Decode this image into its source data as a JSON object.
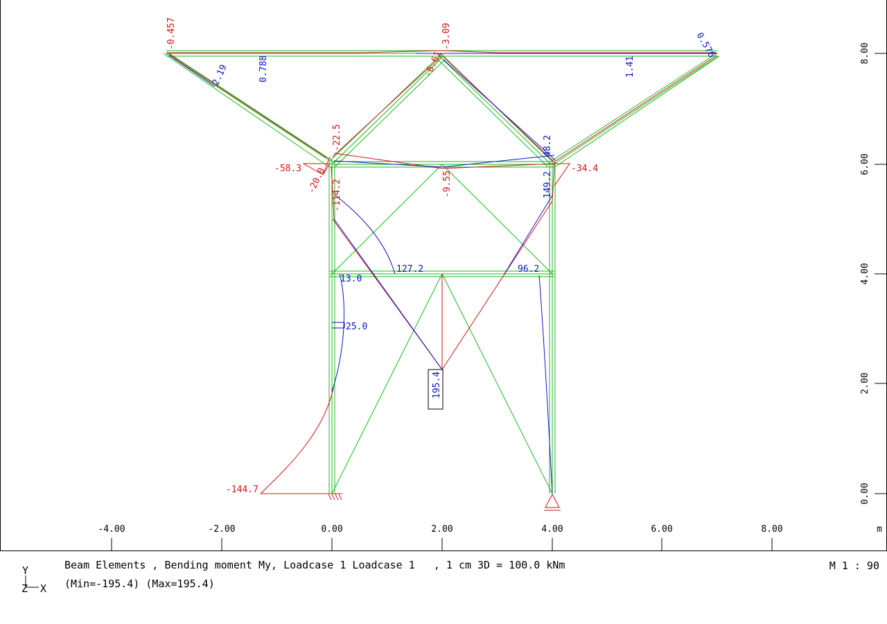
{
  "colors": {
    "structure": "#18b818",
    "positive": "#0a14c8",
    "negative": "#d21414",
    "axis": "#000000"
  },
  "axes": {
    "x_ticks": [
      "-4.00",
      "-2.00",
      "0.00",
      "2.00",
      "4.00",
      "6.00",
      "8.00"
    ],
    "x_unit": "m",
    "y_ticks": [
      "0.00",
      "2.00",
      "4.00",
      "6.00",
      "8.00"
    ]
  },
  "labels": [
    {
      "text": "-0.457",
      "color": "negative"
    },
    {
      "text": "-3.09",
      "color": "negative"
    },
    {
      "text": "0.576",
      "color": "positive"
    },
    {
      "text": "2.19",
      "color": "positive"
    },
    {
      "text": "0.788",
      "color": "positive"
    },
    {
      "text": "1.41",
      "color": "positive"
    },
    {
      "text": "-6.61",
      "color": "negative"
    },
    {
      "text": "-22.5",
      "color": "negative"
    },
    {
      "text": "48.2",
      "color": "positive"
    },
    {
      "text": "-58.3",
      "color": "negative"
    },
    {
      "text": "-20.0",
      "color": "negative"
    },
    {
      "text": "-114.2",
      "color": "negative"
    },
    {
      "text": "-9.55",
      "color": "negative"
    },
    {
      "text": "149.2",
      "color": "positive"
    },
    {
      "text": "-34.4",
      "color": "negative"
    },
    {
      "text": "127.2",
      "color": "positive"
    },
    {
      "text": "96.2",
      "color": "positive"
    },
    {
      "text": "13.0",
      "color": "positive"
    },
    {
      "text": "25.0",
      "color": "positive"
    },
    {
      "text": "195.4",
      "color": "positive"
    },
    {
      "text": "-144.7",
      "color": "negative"
    }
  ],
  "footer": {
    "title": "Beam Elements , Bending moment My, Loadcase 1 Loadcase 1   , 1 cm 3D = 100.0 kNm",
    "minmax": "(Min=-195.4) (Max=195.4)",
    "scale": "M 1 : 90",
    "axis_y": "Y",
    "axis_x": "X",
    "axis_z": "Z"
  }
}
